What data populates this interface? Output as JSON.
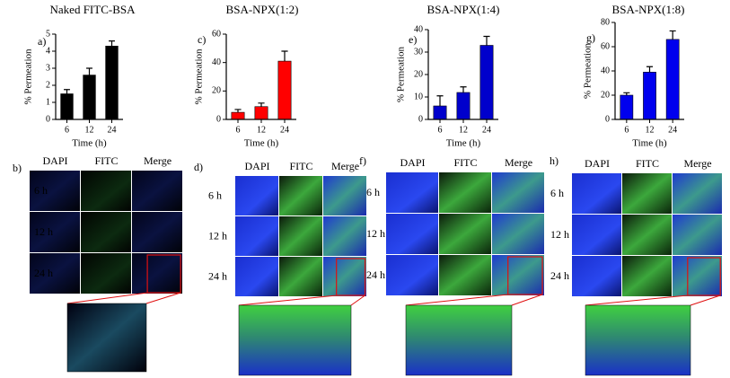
{
  "chart_data": [
    {
      "type": "bar",
      "label": "a)",
      "title": "Naked FITC-BSA",
      "ylabel": "% Permeation",
      "xlabel": "Time (h)",
      "categories": [
        "6",
        "12",
        "24"
      ],
      "values": [
        1.5,
        2.6,
        4.3
      ],
      "errors": [
        0.25,
        0.4,
        0.3
      ],
      "color": "#000000",
      "ylim": [
        0,
        5
      ],
      "yticks": [
        0,
        1,
        2,
        3,
        4,
        5
      ]
    },
    {
      "type": "bar",
      "label": "c)",
      "title": "BSA-NPX(1:2)",
      "ylabel": "% Permeation",
      "xlabel": "Time (h)",
      "categories": [
        "6",
        "12",
        "24"
      ],
      "values": [
        5,
        9,
        41
      ],
      "errors": [
        2,
        2.5,
        7
      ],
      "color": "#ff0000",
      "ylim": [
        0,
        60
      ],
      "yticks": [
        0,
        20,
        40,
        60
      ]
    },
    {
      "type": "bar",
      "label": "e)",
      "title": "BSA-NPX(1:4)",
      "ylabel": "% Permeation",
      "xlabel": "Time (h)",
      "categories": [
        "6",
        "12",
        "24"
      ],
      "values": [
        6,
        12,
        33
      ],
      "errors": [
        4.5,
        2.5,
        4
      ],
      "color": "#0000cc",
      "ylim": [
        0,
        40
      ],
      "yticks": [
        0,
        10,
        20,
        30,
        40
      ]
    },
    {
      "type": "bar",
      "label": "g)",
      "title": "BSA-NPX(1:8)",
      "ylabel": "% Permeation",
      "xlabel": "Time (h)",
      "categories": [
        "6",
        "12",
        "24"
      ],
      "values": [
        20,
        39,
        66
      ],
      "errors": [
        2,
        4.5,
        7
      ],
      "color": "#0000ee",
      "ylim": [
        0,
        80
      ],
      "yticks": [
        0,
        20,
        40,
        60,
        80
      ]
    }
  ],
  "panels": [
    {
      "label": "b)",
      "columns": [
        "DAPI",
        "FITC",
        "Merge"
      ],
      "rows": [
        "6 h",
        "12 h",
        "24 h"
      ]
    },
    {
      "label": "d)",
      "columns": [
        "DAPI",
        "FITC",
        "Merge"
      ],
      "rows": [
        "6 h",
        "12 h",
        "24 h"
      ]
    },
    {
      "label": "f)",
      "columns": [
        "DAPI",
        "FITC",
        "Merge"
      ],
      "rows": [
        "6 h",
        "12 h",
        "24 h"
      ]
    },
    {
      "label": "h)",
      "columns": [
        "DAPI",
        "FITC",
        "Merge"
      ],
      "rows": [
        "6 h",
        "12 h",
        "24 h"
      ]
    }
  ]
}
